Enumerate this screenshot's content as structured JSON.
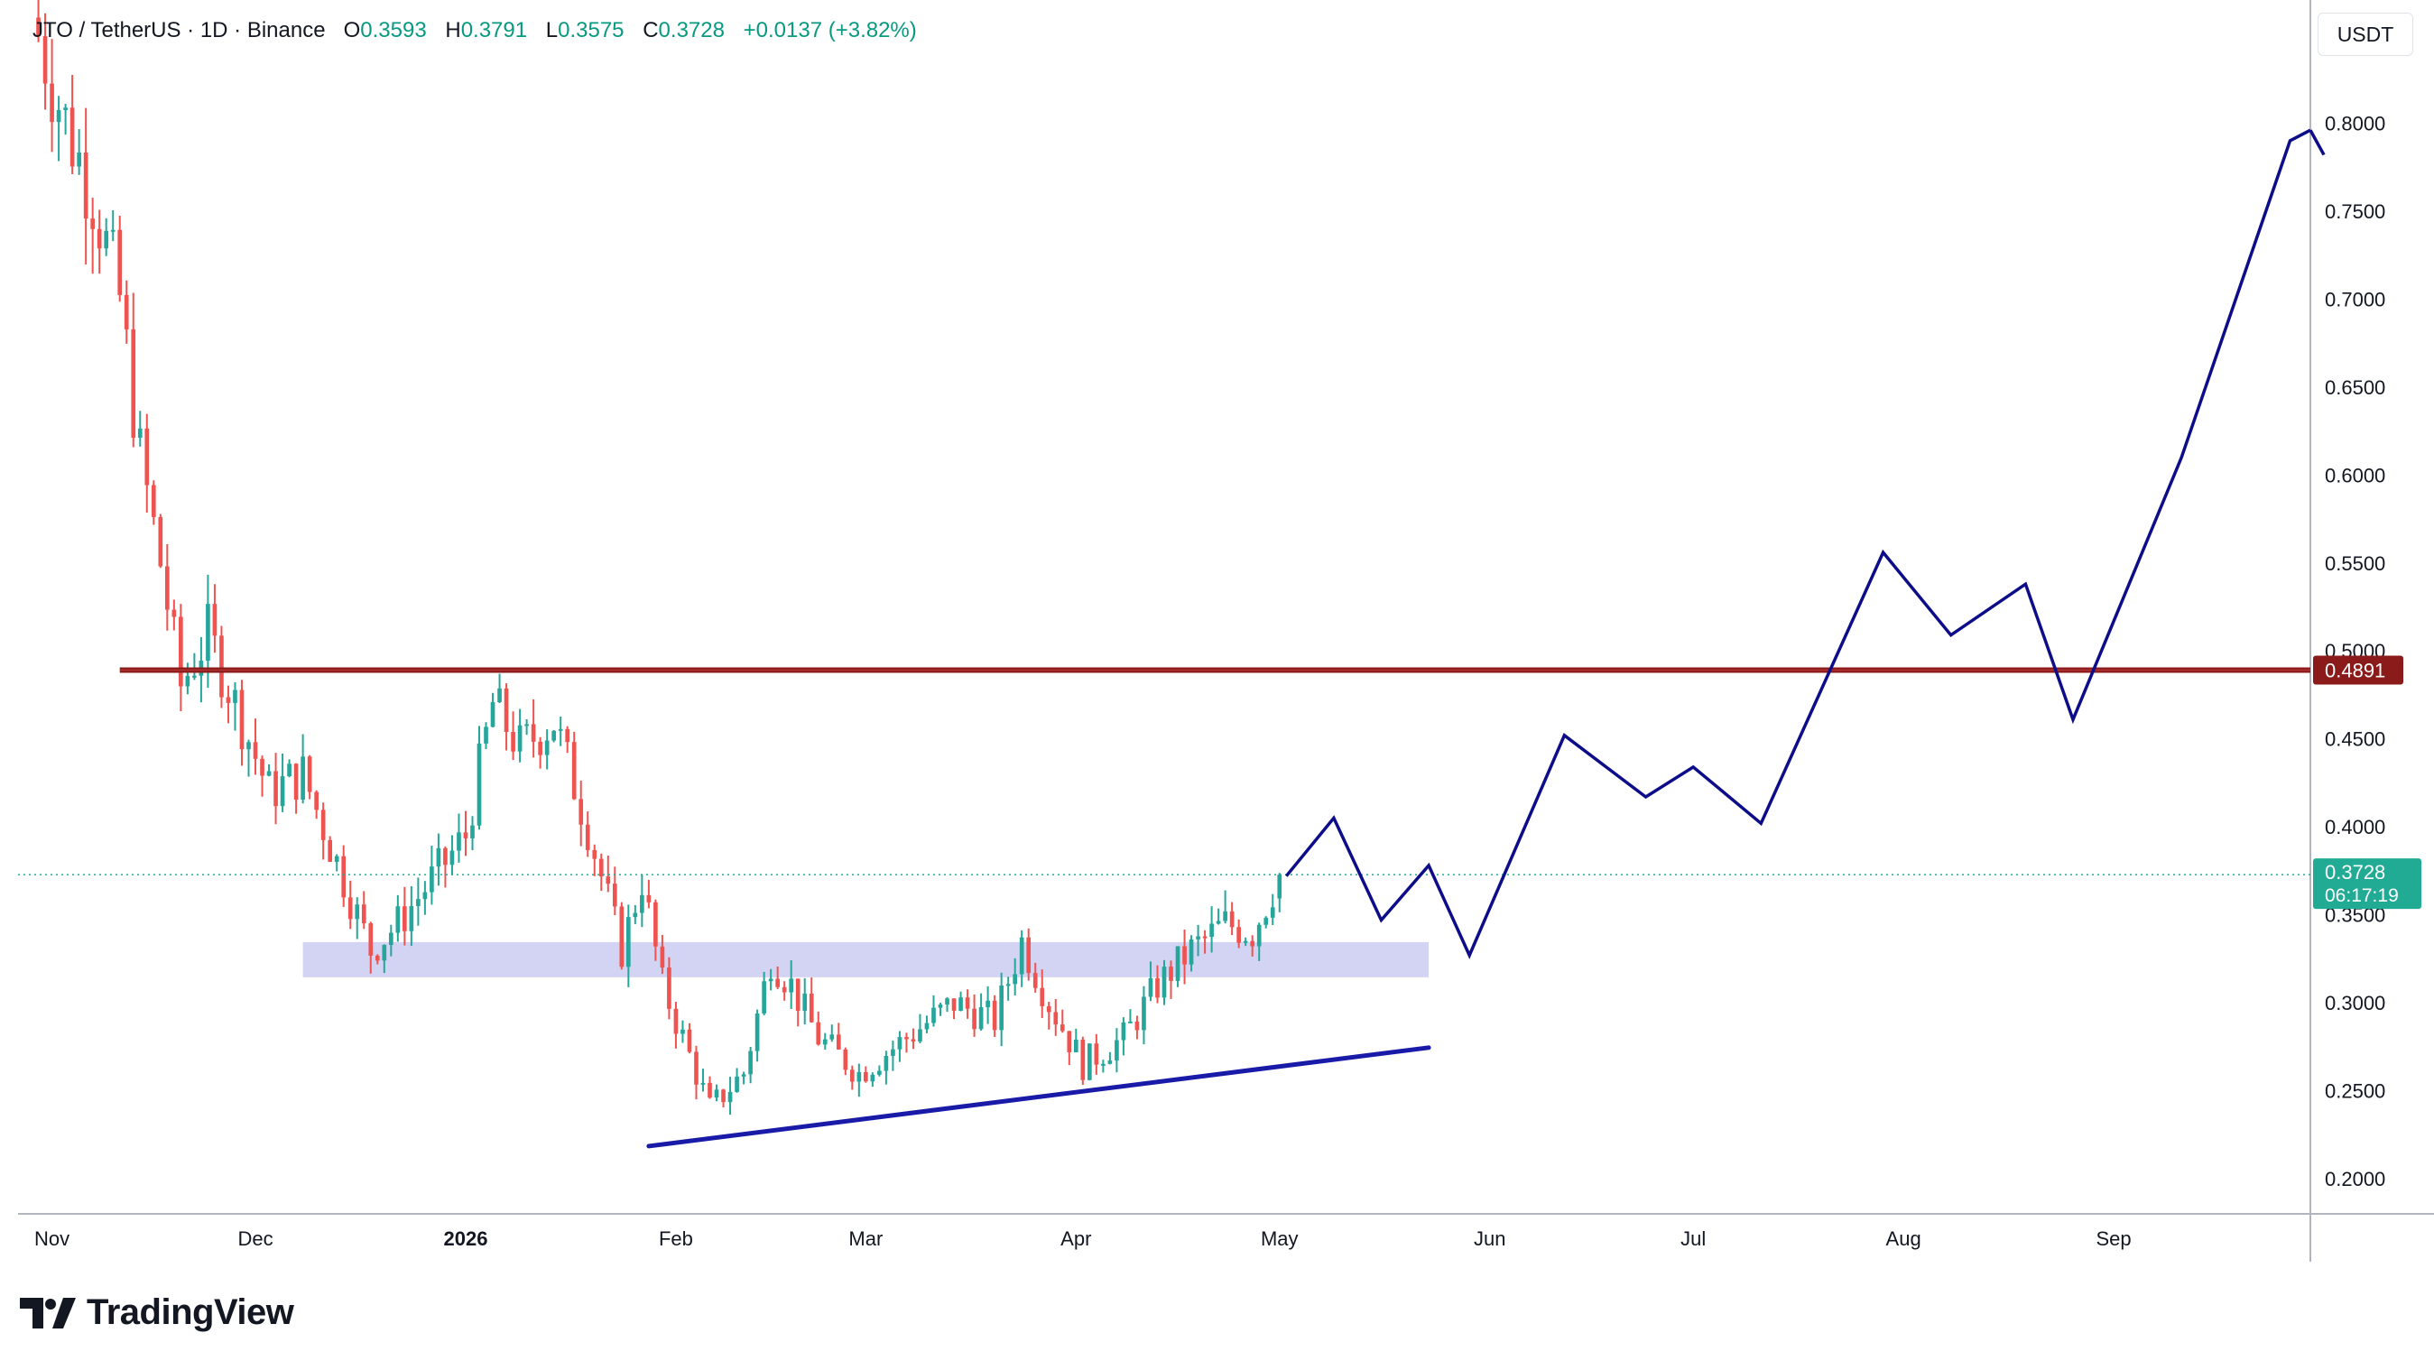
{
  "header": {
    "symbol": "JTO / TetherUS · 1D · Binance",
    "o_label": "O",
    "o": "0.3593",
    "h_label": "H",
    "h": "0.3791",
    "l_label": "L",
    "l": "0.3575",
    "c_label": "C",
    "c": "0.3728",
    "change": "+0.0137 (+3.82%)"
  },
  "currency_button": "USDT",
  "brand": "TradingView",
  "colors": {
    "up": "#26a69a",
    "down": "#ef5350",
    "resistance": "#8b1a1a",
    "projection": "#0d0d8a",
    "trendline": "#1a1aa8",
    "support_zone": "#c8c8f0",
    "last_price": "#22ab94"
  },
  "chart_data": {
    "type": "candlestick",
    "y_axis": {
      "unit": "USDT",
      "range": [
        0.18,
        0.87
      ],
      "ticks": [
        "0.2000",
        "0.2500",
        "0.3000",
        "0.3500",
        "0.4000",
        "0.4500",
        "0.5000",
        "0.5500",
        "0.6000",
        "0.6500",
        "0.7000",
        "0.7500",
        "0.8000"
      ]
    },
    "x_axis": {
      "range": [
        "2025-10-27",
        "2026-09-30"
      ],
      "ticks": [
        {
          "label": "Nov",
          "date": "2025-11-01"
        },
        {
          "label": "Dec",
          "date": "2025-12-01"
        },
        {
          "label": "2026",
          "date": "2026-01-01",
          "bold": true
        },
        {
          "label": "Feb",
          "date": "2026-02-01"
        },
        {
          "label": "Mar",
          "date": "2026-03-01"
        },
        {
          "label": "Apr",
          "date": "2026-04-01"
        },
        {
          "label": "May",
          "date": "2026-05-01"
        },
        {
          "label": "Jun",
          "date": "2026-06-01"
        },
        {
          "label": "Jul",
          "date": "2026-07-01"
        },
        {
          "label": "Aug",
          "date": "2026-08-01"
        },
        {
          "label": "Sep",
          "date": "2026-09-01"
        }
      ]
    },
    "candle_anchors": [
      {
        "date": "2025-10-30",
        "close": 0.85
      },
      {
        "date": "2025-11-03",
        "close": 0.8
      },
      {
        "date": "2025-11-07",
        "close": 0.76
      },
      {
        "date": "2025-11-11",
        "close": 0.7
      },
      {
        "date": "2025-11-14",
        "close": 0.61
      },
      {
        "date": "2025-11-17",
        "close": 0.55
      },
      {
        "date": "2025-11-20",
        "close": 0.48
      },
      {
        "date": "2025-11-24",
        "close": 0.51
      },
      {
        "date": "2025-11-28",
        "close": 0.47
      },
      {
        "date": "2025-12-03",
        "close": 0.42
      },
      {
        "date": "2025-12-08",
        "close": 0.43
      },
      {
        "date": "2025-12-13",
        "close": 0.38
      },
      {
        "date": "2025-12-18",
        "close": 0.33
      },
      {
        "date": "2025-12-22",
        "close": 0.345
      },
      {
        "date": "2025-12-27",
        "close": 0.37
      },
      {
        "date": "2026-01-01",
        "close": 0.395
      },
      {
        "date": "2026-01-05",
        "close": 0.47
      },
      {
        "date": "2026-01-09",
        "close": 0.445
      },
      {
        "date": "2026-01-14",
        "close": 0.46
      },
      {
        "date": "2026-01-19",
        "close": 0.4
      },
      {
        "date": "2026-01-24",
        "close": 0.33
      },
      {
        "date": "2026-01-27",
        "close": 0.37
      },
      {
        "date": "2026-01-30",
        "close": 0.31
      },
      {
        "date": "2026-02-03",
        "close": 0.27
      },
      {
        "date": "2026-02-06",
        "close": 0.24
      },
      {
        "date": "2026-02-11",
        "close": 0.26
      },
      {
        "date": "2026-02-15",
        "close": 0.325
      },
      {
        "date": "2026-02-18",
        "close": 0.31
      },
      {
        "date": "2026-02-22",
        "close": 0.28
      },
      {
        "date": "2026-02-28",
        "close": 0.26
      },
      {
        "date": "2026-03-07",
        "close": 0.28
      },
      {
        "date": "2026-03-14",
        "close": 0.3
      },
      {
        "date": "2026-03-20",
        "close": 0.29
      },
      {
        "date": "2026-03-24",
        "close": 0.335
      },
      {
        "date": "2026-03-28",
        "close": 0.3
      },
      {
        "date": "2026-04-02",
        "close": 0.265
      },
      {
        "date": "2026-04-08",
        "close": 0.28
      },
      {
        "date": "2026-04-13",
        "close": 0.31
      },
      {
        "date": "2026-04-18",
        "close": 0.33
      },
      {
        "date": "2026-04-23",
        "close": 0.345
      },
      {
        "date": "2026-04-27",
        "close": 0.34
      },
      {
        "date": "2026-05-01",
        "close": 0.3728
      }
    ],
    "resistance_level": {
      "value": 0.4891,
      "label": "0.4891",
      "from": "2025-11-11",
      "to": "2026-09-30"
    },
    "support_zone": {
      "from": "2025-12-08",
      "to": "2026-05-23",
      "low": 0.3145,
      "high": 0.3345
    },
    "trendline": {
      "from": {
        "date": "2026-01-28",
        "value": 0.2185
      },
      "to": {
        "date": "2026-05-23",
        "value": 0.2745
      }
    },
    "projection_path": [
      {
        "date": "2026-05-02",
        "value": 0.372
      },
      {
        "date": "2026-05-09",
        "value": 0.405
      },
      {
        "date": "2026-05-16",
        "value": 0.347
      },
      {
        "date": "2026-05-23",
        "value": 0.378
      },
      {
        "date": "2026-05-29",
        "value": 0.327
      },
      {
        "date": "2026-06-12",
        "value": 0.452
      },
      {
        "date": "2026-06-24",
        "value": 0.417
      },
      {
        "date": "2026-07-01",
        "value": 0.434
      },
      {
        "date": "2026-07-11",
        "value": 0.402
      },
      {
        "date": "2026-07-29",
        "value": 0.556
      },
      {
        "date": "2026-08-08",
        "value": 0.509
      },
      {
        "date": "2026-08-19",
        "value": 0.538
      },
      {
        "date": "2026-08-26",
        "value": 0.461
      },
      {
        "date": "2026-09-11",
        "value": 0.61
      },
      {
        "date": "2026-09-27",
        "value": 0.79
      },
      {
        "date": "2026-09-30",
        "value": 0.796
      }
    ],
    "projection_arrow_end": {
      "date": "2026-10-02",
      "value": 0.782
    },
    "last_price": {
      "value": 0.3728,
      "label": "0.3728",
      "countdown": "06:17:19"
    }
  }
}
